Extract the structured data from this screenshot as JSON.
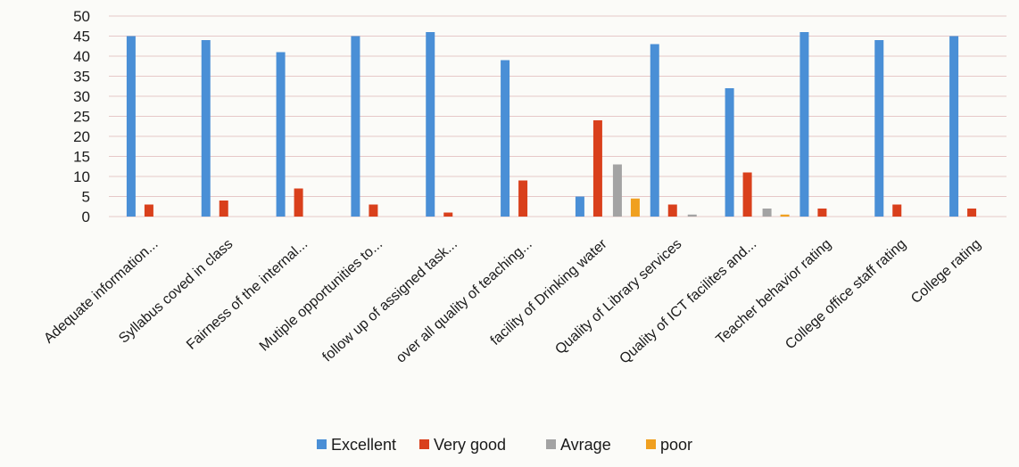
{
  "chart_data": {
    "type": "bar",
    "title": "",
    "xlabel": "",
    "ylabel": "",
    "ylim": [
      0,
      50
    ],
    "yticks": [
      0,
      5,
      10,
      15,
      20,
      25,
      30,
      35,
      40,
      45,
      50
    ],
    "grid": true,
    "legend_position": "bottom",
    "categories": [
      "Adequate information...",
      "Syllabus coved in class",
      "Fairness of the internal...",
      "Mutiple opportunities to...",
      "follow up of assigned task...",
      "over all quality of teaching...",
      "facility of Drinking water",
      "Quality of Library services",
      "Quality of ICT facilites and...",
      "Teacher behavior rating",
      "College office staff rating",
      "College rating"
    ],
    "series": [
      {
        "name": "Excellent",
        "color": "#4a8fd6",
        "values": [
          45,
          44,
          41,
          45,
          46,
          39,
          5,
          43,
          32,
          46,
          44,
          45
        ]
      },
      {
        "name": "Very good",
        "color": "#d9401c",
        "values": [
          3,
          4,
          7,
          3,
          1,
          9,
          24,
          3,
          11,
          2,
          3,
          2
        ]
      },
      {
        "name": "Avrage",
        "color": "#a3a3a3",
        "values": [
          0,
          0,
          0,
          0,
          0,
          0,
          13,
          0.5,
          2,
          0,
          0,
          0
        ]
      },
      {
        "name": "poor",
        "color": "#f0a020",
        "values": [
          0,
          0,
          0,
          0,
          0,
          0,
          4.5,
          0,
          0.5,
          0,
          0,
          0
        ]
      }
    ]
  }
}
